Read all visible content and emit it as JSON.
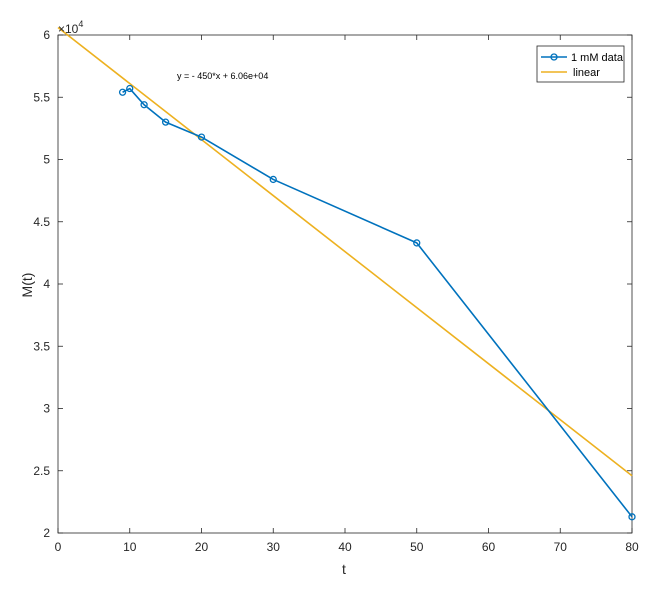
{
  "chart_data": {
    "type": "line",
    "xlabel": "t",
    "ylabel": "M(t)",
    "xlim": [
      0,
      80
    ],
    "ylim": [
      2,
      6
    ],
    "x_ticks": [
      0,
      10,
      20,
      30,
      40,
      50,
      60,
      70,
      80
    ],
    "y_ticks": [
      2,
      2.5,
      3,
      3.5,
      4,
      4.5,
      5,
      5.5,
      6
    ],
    "y_tick_labels": [
      "2",
      "2.5",
      "3",
      "3.5",
      "4",
      "4.5",
      "5",
      "5.5",
      "6"
    ],
    "exponent_base": "×10",
    "exponent_power": "4",
    "grid": false,
    "legend_position": "top-right",
    "annotation": "y = - 450*x + 6.06e+04",
    "series": [
      {
        "name": "1 mM data",
        "color": "#0072BD",
        "marker": "circle",
        "x": [
          9,
          10,
          12,
          15,
          20,
          30,
          50,
          80
        ],
        "y": [
          5.54,
          5.57,
          5.44,
          5.3,
          5.18,
          4.84,
          4.33,
          2.13
        ]
      },
      {
        "name": "linear",
        "color": "#EDB120",
        "marker": "none",
        "x": [
          0,
          80
        ],
        "y": [
          6.06,
          2.46
        ]
      }
    ]
  }
}
